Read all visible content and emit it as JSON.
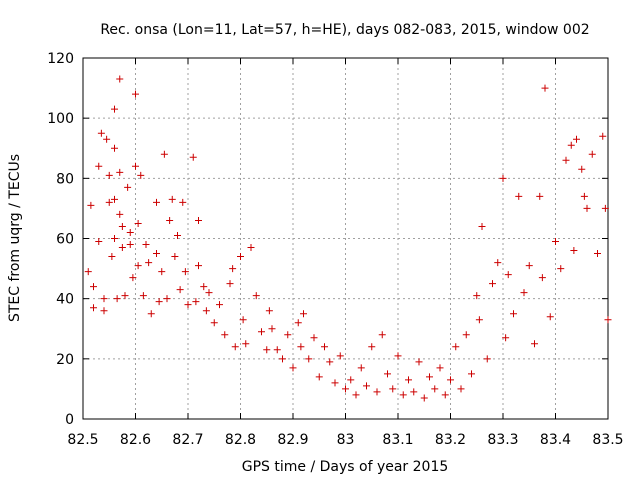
{
  "chart_data": {
    "type": "scatter",
    "title": "Rec. onsa (Lon=11, Lat=57, h=HE), days 082-083, 2015, window 002",
    "xlabel": "GPS time / Days of year 2015",
    "ylabel": "STEC from uqrg / TECUs",
    "xlim": [
      82.5,
      83.5
    ],
    "ylim": [
      0,
      120
    ],
    "xticks": [
      "82.5",
      "82.6",
      "82.7",
      "82.8",
      "82.9",
      "83",
      "83.1",
      "83.2",
      "83.3",
      "83.4",
      "83.5"
    ],
    "yticks": [
      "0",
      "20",
      "40",
      "60",
      "80",
      "100",
      "120"
    ],
    "grid": true,
    "marker": "+",
    "color": "#cc0000",
    "points": [
      [
        82.51,
        49
      ],
      [
        82.515,
        71
      ],
      [
        82.52,
        44
      ],
      [
        82.52,
        37
      ],
      [
        82.53,
        59
      ],
      [
        82.53,
        84
      ],
      [
        82.535,
        95
      ],
      [
        82.54,
        36
      ],
      [
        82.54,
        40
      ],
      [
        82.545,
        93
      ],
      [
        82.55,
        72
      ],
      [
        82.55,
        81
      ],
      [
        82.555,
        54
      ],
      [
        82.56,
        103
      ],
      [
        82.56,
        90
      ],
      [
        82.56,
        73
      ],
      [
        82.56,
        60
      ],
      [
        82.565,
        40
      ],
      [
        82.57,
        113
      ],
      [
        82.57,
        82
      ],
      [
        82.57,
        68
      ],
      [
        82.575,
        64
      ],
      [
        82.575,
        57
      ],
      [
        82.58,
        41
      ],
      [
        82.585,
        77
      ],
      [
        82.59,
        62
      ],
      [
        82.59,
        58
      ],
      [
        82.595,
        47
      ],
      [
        82.6,
        108
      ],
      [
        82.6,
        84
      ],
      [
        82.605,
        65
      ],
      [
        82.605,
        51
      ],
      [
        82.61,
        81
      ],
      [
        82.615,
        41
      ],
      [
        82.62,
        58
      ],
      [
        82.625,
        52
      ],
      [
        82.63,
        35
      ],
      [
        82.64,
        72
      ],
      [
        82.64,
        55
      ],
      [
        82.645,
        39
      ],
      [
        82.65,
        49
      ],
      [
        82.655,
        88
      ],
      [
        82.66,
        40
      ],
      [
        82.665,
        66
      ],
      [
        82.67,
        73
      ],
      [
        82.675,
        54
      ],
      [
        82.68,
        61
      ],
      [
        82.685,
        43
      ],
      [
        82.69,
        72
      ],
      [
        82.695,
        49
      ],
      [
        82.7,
        38
      ],
      [
        82.71,
        87
      ],
      [
        82.715,
        39
      ],
      [
        82.72,
        66
      ],
      [
        82.72,
        51
      ],
      [
        82.73,
        44
      ],
      [
        82.735,
        36
      ],
      [
        82.74,
        42
      ],
      [
        82.75,
        32
      ],
      [
        82.76,
        38
      ],
      [
        82.77,
        28
      ],
      [
        82.78,
        45
      ],
      [
        82.785,
        50
      ],
      [
        82.79,
        24
      ],
      [
        82.8,
        54
      ],
      [
        82.805,
        33
      ],
      [
        82.81,
        25
      ],
      [
        82.82,
        57
      ],
      [
        82.83,
        41
      ],
      [
        82.84,
        29
      ],
      [
        82.85,
        23
      ],
      [
        82.855,
        36
      ],
      [
        82.86,
        30
      ],
      [
        82.87,
        23
      ],
      [
        82.88,
        20
      ],
      [
        82.89,
        28
      ],
      [
        82.9,
        17
      ],
      [
        82.91,
        32
      ],
      [
        82.915,
        24
      ],
      [
        82.92,
        35
      ],
      [
        82.93,
        20
      ],
      [
        82.94,
        27
      ],
      [
        82.95,
        14
      ],
      [
        82.96,
        24
      ],
      [
        82.97,
        19
      ],
      [
        82.98,
        12
      ],
      [
        82.99,
        21
      ],
      [
        83.0,
        10
      ],
      [
        83.01,
        13
      ],
      [
        83.02,
        8
      ],
      [
        83.03,
        17
      ],
      [
        83.04,
        11
      ],
      [
        83.05,
        24
      ],
      [
        83.06,
        9
      ],
      [
        83.07,
        28
      ],
      [
        83.08,
        15
      ],
      [
        83.09,
        10
      ],
      [
        83.1,
        21
      ],
      [
        83.11,
        8
      ],
      [
        83.12,
        13
      ],
      [
        83.13,
        9
      ],
      [
        83.14,
        19
      ],
      [
        83.15,
        7
      ],
      [
        83.16,
        14
      ],
      [
        83.17,
        10
      ],
      [
        83.18,
        17
      ],
      [
        83.19,
        8
      ],
      [
        83.2,
        13
      ],
      [
        83.21,
        24
      ],
      [
        83.22,
        10
      ],
      [
        83.23,
        28
      ],
      [
        83.24,
        15
      ],
      [
        83.25,
        41
      ],
      [
        83.255,
        33
      ],
      [
        83.26,
        64
      ],
      [
        83.27,
        20
      ],
      [
        83.28,
        45
      ],
      [
        83.29,
        52
      ],
      [
        83.3,
        80
      ],
      [
        83.305,
        27
      ],
      [
        83.31,
        48
      ],
      [
        83.32,
        35
      ],
      [
        83.33,
        74
      ],
      [
        83.34,
        42
      ],
      [
        83.35,
        51
      ],
      [
        83.36,
        25
      ],
      [
        83.37,
        74
      ],
      [
        83.375,
        47
      ],
      [
        83.38,
        110
      ],
      [
        83.39,
        34
      ],
      [
        83.4,
        59
      ],
      [
        83.41,
        50
      ],
      [
        83.42,
        86
      ],
      [
        83.43,
        91
      ],
      [
        83.435,
        56
      ],
      [
        83.44,
        93
      ],
      [
        83.45,
        83
      ],
      [
        83.455,
        74
      ],
      [
        83.46,
        70
      ],
      [
        83.47,
        88
      ],
      [
        83.48,
        55
      ],
      [
        83.49,
        94
      ],
      [
        83.495,
        70
      ],
      [
        83.5,
        33
      ]
    ]
  }
}
